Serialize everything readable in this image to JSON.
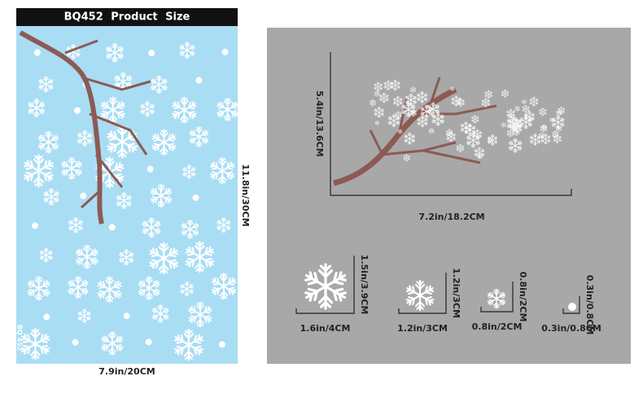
{
  "header": {
    "title": "BQ452 Product Size"
  },
  "sheet": {
    "label": "BQ 452",
    "height": "11.8in/30CM",
    "width": "7.9in/20CM"
  },
  "branch": {
    "height": "5.4in/13.6CM",
    "width": "7.2in/18.2CM"
  },
  "flakes": [
    {
      "height": "1.5in/3.9CM",
      "width": "1.6in/4CM"
    },
    {
      "height": "1.2in/3CM",
      "width": "1.2in/3CM"
    },
    {
      "height": "0.8in/2CM",
      "width": "0.8in/2CM"
    },
    {
      "height": "0.3in/0.8CM",
      "width": "0.3in/0.8CM"
    }
  ]
}
